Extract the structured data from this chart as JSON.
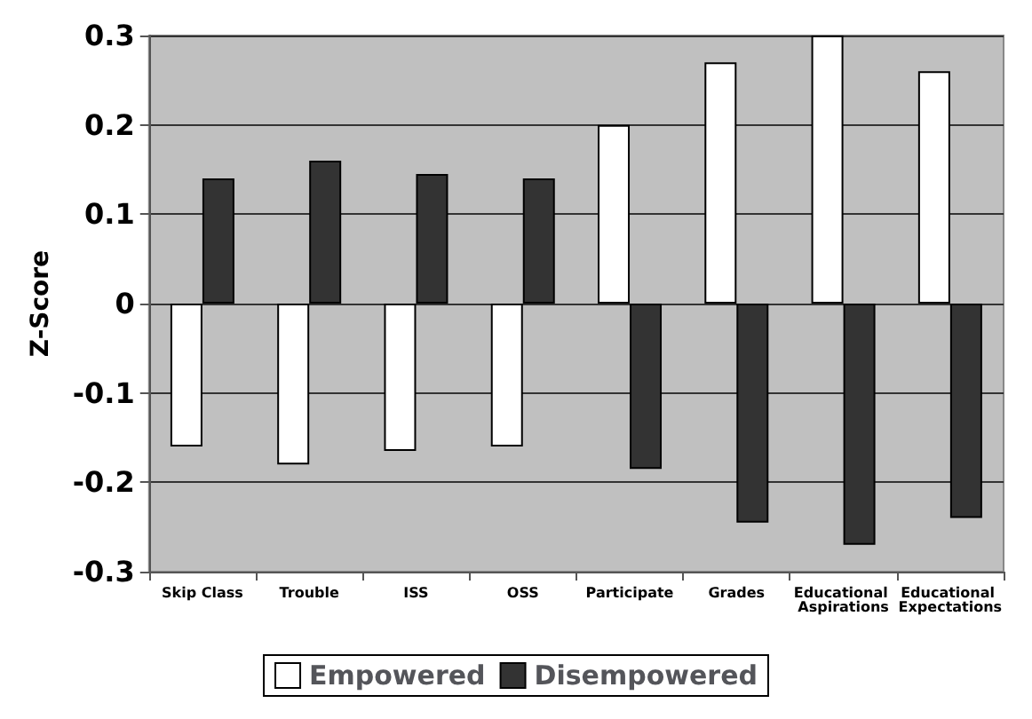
{
  "chart_data": {
    "type": "bar",
    "ylabel": "Z-Score",
    "categories": [
      "Skip Class",
      "Trouble",
      "ISS",
      "OSS",
      "Participate",
      "Grades",
      "Educational Aspirations",
      "Educational Expectations"
    ],
    "series": [
      {
        "name": "Empowered",
        "color": "#ffffff",
        "values": [
          -0.16,
          -0.18,
          -0.165,
          -0.16,
          0.2,
          0.27,
          0.3,
          0.26
        ]
      },
      {
        "name": "Disempowered",
        "color": "#333333",
        "values": [
          0.14,
          0.16,
          0.145,
          0.14,
          -0.185,
          -0.245,
          -0.27,
          -0.24
        ]
      }
    ],
    "ylim": [
      -0.3,
      0.3
    ],
    "yticks": [
      -0.3,
      -0.2,
      -0.1,
      0,
      0.1,
      0.2,
      0.3
    ],
    "grid": "y",
    "legend": "bottom"
  }
}
